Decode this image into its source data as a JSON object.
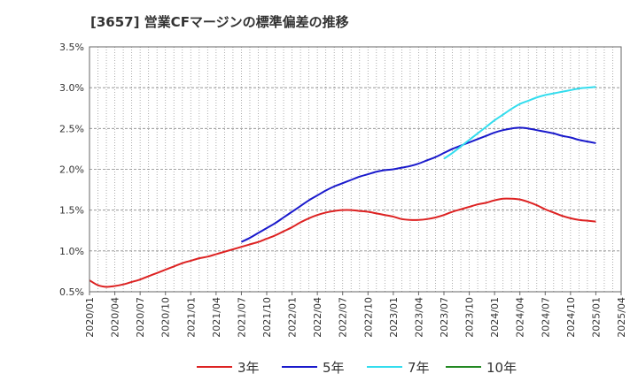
{
  "chart_data": {
    "type": "line",
    "title": "[3657]  営業CFマージンの標準偏差の推移",
    "xlabel": "",
    "ylabel": "",
    "ylim": [
      0.5,
      3.5
    ],
    "yticks": [
      "0.5%",
      "1.0%",
      "1.5%",
      "2.0%",
      "2.5%",
      "3.0%",
      "3.5%"
    ],
    "xticks": [
      "2020/01",
      "2020/04",
      "2020/07",
      "2020/10",
      "2021/01",
      "2021/04",
      "2021/07",
      "2021/10",
      "2022/01",
      "2022/04",
      "2022/07",
      "2022/10",
      "2023/01",
      "2023/04",
      "2023/07",
      "2023/10",
      "2024/01",
      "2024/04",
      "2024/07",
      "2024/10",
      "2025/01",
      "2025/04"
    ],
    "grid": true,
    "legend_position": "bottom",
    "series": [
      {
        "name": "3年",
        "color": "#dd2222",
        "x": [
          "2020/01",
          "2020/02",
          "2020/03",
          "2020/04",
          "2020/05",
          "2020/06",
          "2020/07",
          "2020/08",
          "2020/09",
          "2020/10",
          "2020/11",
          "2020/12",
          "2021/01",
          "2021/02",
          "2021/03",
          "2021/04",
          "2021/05",
          "2021/06",
          "2021/07",
          "2021/08",
          "2021/09",
          "2021/10",
          "2021/11",
          "2021/12",
          "2022/01",
          "2022/02",
          "2022/03",
          "2022/04",
          "2022/05",
          "2022/06",
          "2022/07",
          "2022/08",
          "2022/09",
          "2022/10",
          "2022/11",
          "2022/12",
          "2023/01",
          "2023/02",
          "2023/03",
          "2023/04",
          "2023/05",
          "2023/06",
          "2023/07",
          "2023/08",
          "2023/09",
          "2023/10",
          "2023/11",
          "2023/12",
          "2024/01",
          "2024/02",
          "2024/03",
          "2024/04",
          "2024/05",
          "2024/06",
          "2024/07",
          "2024/08",
          "2024/09",
          "2024/10",
          "2024/11",
          "2024/12",
          "2025/01"
        ],
        "values": [
          0.64,
          0.58,
          0.56,
          0.57,
          0.59,
          0.62,
          0.65,
          0.69,
          0.73,
          0.77,
          0.81,
          0.85,
          0.88,
          0.91,
          0.93,
          0.96,
          0.99,
          1.02,
          1.05,
          1.08,
          1.11,
          1.15,
          1.19,
          1.24,
          1.29,
          1.35,
          1.4,
          1.44,
          1.47,
          1.49,
          1.5,
          1.5,
          1.49,
          1.48,
          1.46,
          1.44,
          1.42,
          1.39,
          1.38,
          1.38,
          1.39,
          1.41,
          1.44,
          1.48,
          1.51,
          1.54,
          1.57,
          1.59,
          1.62,
          1.64,
          1.64,
          1.63,
          1.6,
          1.56,
          1.51,
          1.47,
          1.43,
          1.4,
          1.38,
          1.37,
          1.36
        ]
      },
      {
        "name": "5年",
        "color": "#1a1acc",
        "x": [
          "2021/07",
          "2021/08",
          "2021/09",
          "2021/10",
          "2021/11",
          "2021/12",
          "2022/01",
          "2022/02",
          "2022/03",
          "2022/04",
          "2022/05",
          "2022/06",
          "2022/07",
          "2022/08",
          "2022/09",
          "2022/10",
          "2022/11",
          "2022/12",
          "2023/01",
          "2023/02",
          "2023/03",
          "2023/04",
          "2023/05",
          "2023/06",
          "2023/07",
          "2023/08",
          "2023/09",
          "2023/10",
          "2023/11",
          "2023/12",
          "2024/01",
          "2024/02",
          "2024/03",
          "2024/04",
          "2024/05",
          "2024/06",
          "2024/07",
          "2024/08",
          "2024/09",
          "2024/10",
          "2024/11",
          "2024/12",
          "2025/01"
        ],
        "values": [
          1.11,
          1.16,
          1.22,
          1.28,
          1.34,
          1.41,
          1.48,
          1.55,
          1.62,
          1.68,
          1.74,
          1.79,
          1.83,
          1.87,
          1.91,
          1.94,
          1.97,
          1.99,
          2.0,
          2.02,
          2.04,
          2.07,
          2.11,
          2.15,
          2.2,
          2.25,
          2.29,
          2.33,
          2.37,
          2.41,
          2.45,
          2.48,
          2.5,
          2.51,
          2.5,
          2.48,
          2.46,
          2.44,
          2.41,
          2.39,
          2.36,
          2.34,
          2.32
        ]
      },
      {
        "name": "7年",
        "color": "#33ddee",
        "x": [
          "2023/07",
          "2023/08",
          "2023/09",
          "2023/10",
          "2023/11",
          "2023/12",
          "2024/01",
          "2024/02",
          "2024/03",
          "2024/04",
          "2024/05",
          "2024/06",
          "2024/07",
          "2024/08",
          "2024/09",
          "2024/10",
          "2024/11",
          "2024/12",
          "2025/01"
        ],
        "values": [
          2.13,
          2.2,
          2.28,
          2.36,
          2.44,
          2.52,
          2.6,
          2.67,
          2.74,
          2.8,
          2.84,
          2.88,
          2.91,
          2.93,
          2.95,
          2.97,
          2.99,
          3.0,
          3.01
        ]
      },
      {
        "name": "10年",
        "color": "#228822",
        "x": [],
        "values": []
      }
    ]
  }
}
